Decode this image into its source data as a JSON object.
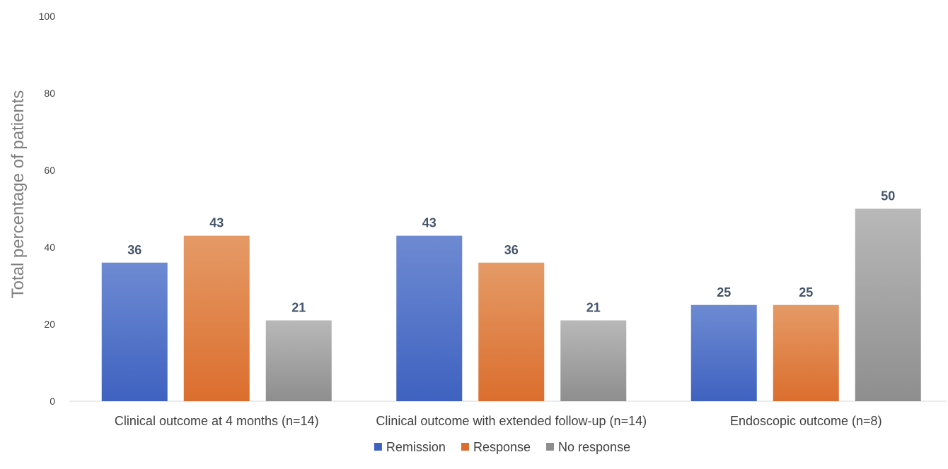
{
  "chart_data": {
    "type": "bar",
    "title": "",
    "xlabel": "",
    "ylabel": "Total percentage of patients",
    "ylim": [
      0,
      100
    ],
    "yticks": [
      0,
      20,
      40,
      60,
      80,
      100
    ],
    "grid": false,
    "legend_position": "bottom",
    "categories": [
      "Clinical outcome at 4 months (n=14)",
      "Clinical outcome with extended follow-up (n=14)",
      "Endoscopic outcome (n=8)"
    ],
    "series": [
      {
        "name": "Remission",
        "values": [
          36,
          43,
          25
        ],
        "color_top": "#6d8ad2",
        "color_bottom": "#3f62c0"
      },
      {
        "name": "Response",
        "values": [
          43,
          36,
          25
        ],
        "color_top": "#e59a66",
        "color_bottom": "#db6e2e"
      },
      {
        "name": "No response",
        "values": [
          21,
          21,
          50
        ],
        "color_top": "#b8b8b8",
        "color_bottom": "#8e8e8e"
      }
    ],
    "data_labels": true
  }
}
